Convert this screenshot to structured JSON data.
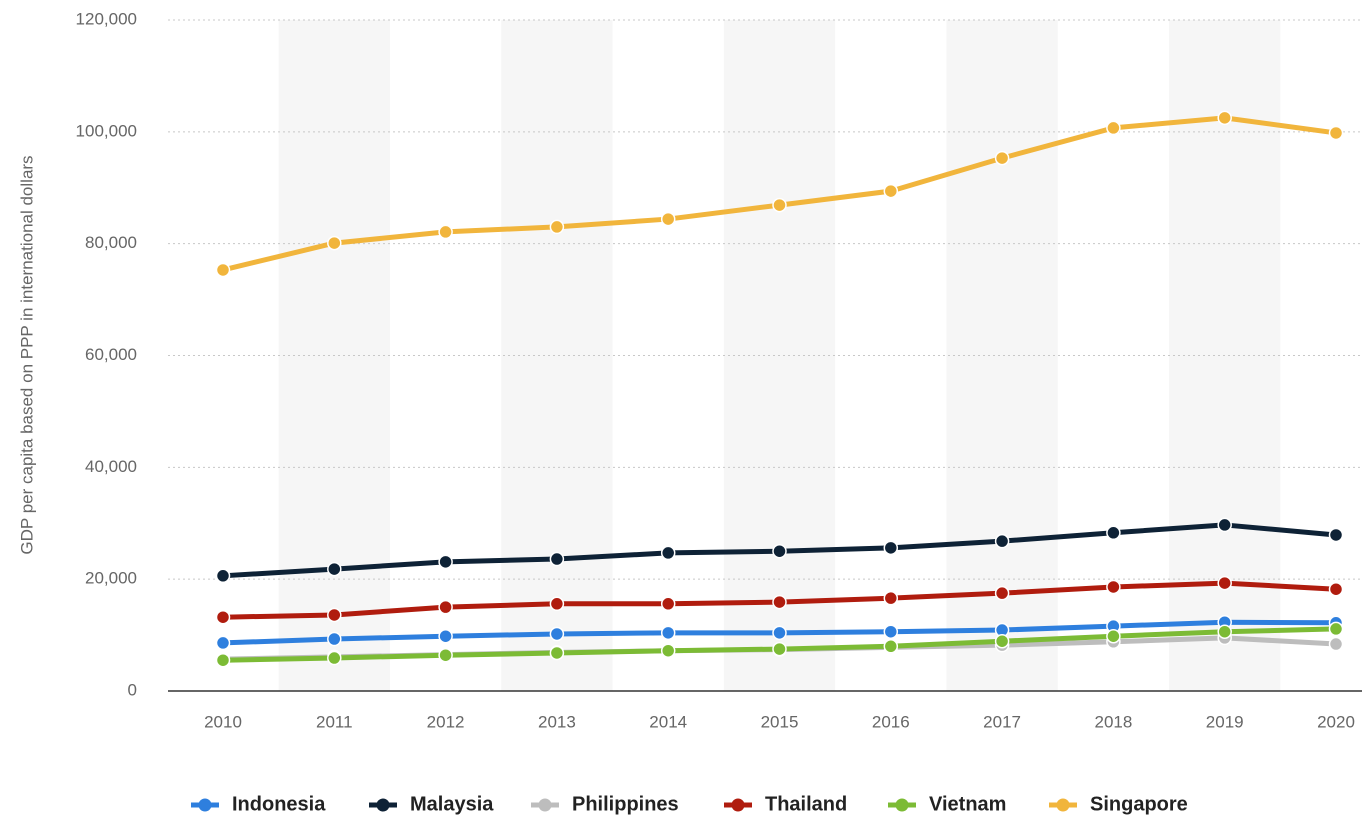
{
  "chart_data": {
    "type": "line",
    "y_label": "GDP per capita based on PPP in international dollars",
    "categories": [
      "2010",
      "2011",
      "2012",
      "2013",
      "2014",
      "2015",
      "2016",
      "2017",
      "2018",
      "2019",
      "2020"
    ],
    "series": [
      {
        "name": "Indonesia",
        "color": "#2e7fde",
        "values": [
          8600,
          9300,
          9800,
          10200,
          10400,
          10400,
          10600,
          10900,
          11600,
          12300,
          12200
        ]
      },
      {
        "name": "Malaysia",
        "color": "#0e2236",
        "values": [
          20600,
          21800,
          23100,
          23600,
          24700,
          25000,
          25600,
          26800,
          28300,
          29700,
          27900
        ]
      },
      {
        "name": "Philippines",
        "color": "#bdbdbd",
        "values": [
          5700,
          6100,
          6500,
          6900,
          7200,
          7400,
          7800,
          8200,
          8800,
          9500,
          8400
        ]
      },
      {
        "name": "Thailand",
        "color": "#b01c0e",
        "values": [
          13200,
          13600,
          15000,
          15600,
          15600,
          15900,
          16600,
          17500,
          18600,
          19300,
          18200
        ]
      },
      {
        "name": "Vietnam",
        "color": "#7cbb35",
        "values": [
          5500,
          5900,
          6400,
          6800,
          7200,
          7500,
          8000,
          8900,
          9800,
          10600,
          11100
        ]
      },
      {
        "name": "Singapore",
        "color": "#f1b53c",
        "values": [
          75300,
          80100,
          82100,
          83000,
          84400,
          86900,
          89400,
          95300,
          100700,
          102500,
          99800
        ]
      }
    ],
    "ylim": [
      0,
      120000
    ],
    "yticks": [
      0,
      {
        "value": 20000,
        "label": "20,000"
      },
      {
        "value": 40000,
        "label": "40,000"
      },
      {
        "value": 60000,
        "label": "60,000"
      },
      {
        "value": 80000,
        "label": "80,000"
      },
      {
        "value": 100000,
        "label": "100,000"
      },
      {
        "value": 120000,
        "label": "120,000"
      }
    ],
    "grid": true
  }
}
